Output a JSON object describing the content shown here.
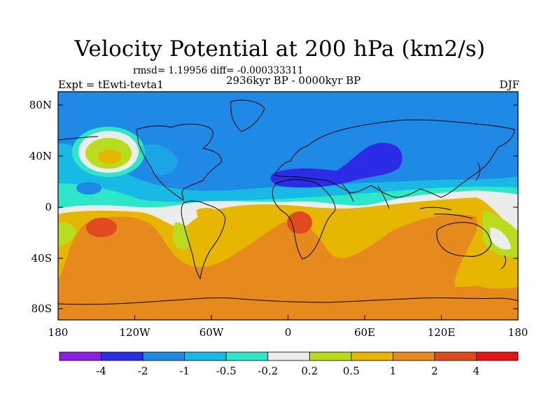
{
  "chart_data": {
    "type": "heatmap",
    "title": "Velocity Potential at 200 hPa (km2/s)",
    "subtitle_stats": "rmsd= 1.19956 diff= -0.000333311",
    "experiment": "Expt = tEwti-tevta1",
    "period": "2936kyr BP - 0000kyr BP",
    "season": "DJF",
    "x_ticks": [
      "180",
      "120W",
      "60W",
      "0",
      "60E",
      "120E",
      "180"
    ],
    "y_ticks": [
      "80N",
      "40N",
      "0",
      "40S",
      "80S"
    ],
    "xlim": [
      -180,
      180
    ],
    "ylim": [
      -90,
      90
    ],
    "colorbar": {
      "labels": [
        "-4",
        "-2",
        "-1",
        "-0.5",
        "-0.2",
        "0.2",
        "0.5",
        "1",
        "2",
        "4"
      ],
      "colors": [
        "#8a1ee6",
        "#2c2ce6",
        "#1e8ae6",
        "#19b9e6",
        "#2ee6c8",
        "#ececec",
        "#b9dc1e",
        "#e6b600",
        "#e68a1e",
        "#e04a1e",
        "#e61414"
      ]
    }
  }
}
